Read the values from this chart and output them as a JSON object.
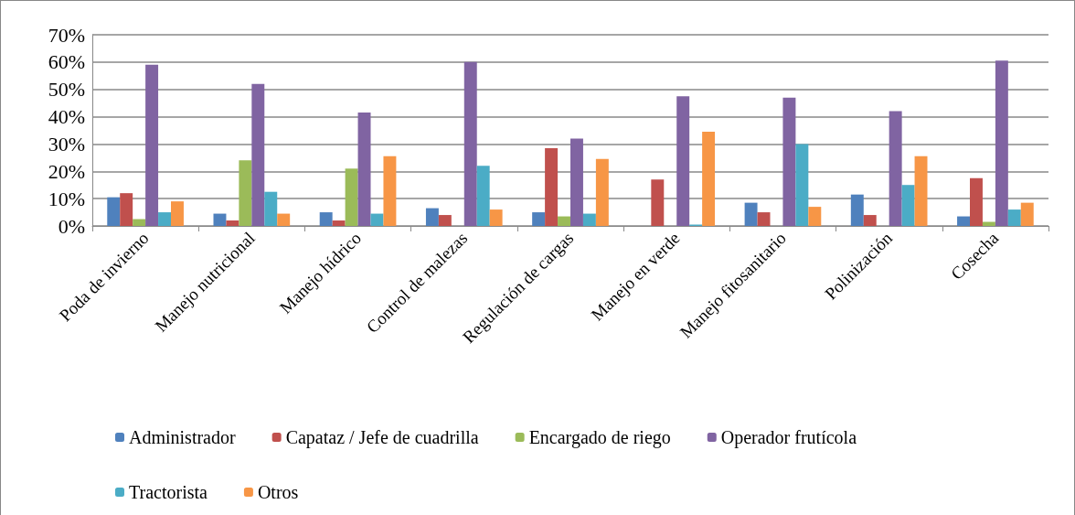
{
  "chart_data": {
    "type": "bar",
    "categories": [
      "Poda de invierno",
      "Manejo nutricional",
      "Manejo hídrico",
      "Control de malezas",
      "Regulación de cargas",
      "Manejo en verde",
      "Manejo fitosanitario",
      "Polinización",
      "Cosecha"
    ],
    "series": [
      {
        "name": "Administrador",
        "color": "#4f81bd",
        "values": [
          10.5,
          4.5,
          5,
          6.5,
          5,
          0,
          8.5,
          11.5,
          3.5
        ]
      },
      {
        "name": "Capataz / Jefe de cuadrilla",
        "color": "#c0504d",
        "values": [
          12,
          2,
          2,
          4,
          28.5,
          17,
          5,
          4,
          17.5
        ]
      },
      {
        "name": "Encargado de riego",
        "color": "#9bbb59",
        "values": [
          2.5,
          24,
          21,
          0,
          3.5,
          0,
          null,
          0,
          1.5
        ]
      },
      {
        "name": "Operador frutícola",
        "color": "#8064a2",
        "values": [
          59,
          52,
          41.5,
          60,
          32,
          47.5,
          47,
          42,
          60.5
        ]
      },
      {
        "name": "Tractorista",
        "color": "#4bacc6",
        "values": [
          5,
          12.5,
          4.5,
          22,
          4.5,
          0.5,
          30,
          15,
          6
        ]
      },
      {
        "name": "Otros",
        "color": "#f79646",
        "values": [
          9,
          4.5,
          25.5,
          6,
          24.5,
          34.5,
          7,
          25.5,
          8.5
        ]
      }
    ],
    "ylim": [
      0,
      70
    ],
    "yticks": [
      {
        "value": 0,
        "label": "0%"
      },
      {
        "value": 10,
        "label": "10%"
      },
      {
        "value": 20,
        "label": "20%"
      },
      {
        "value": 30,
        "label": "30%"
      },
      {
        "value": 40,
        "label": "40%"
      },
      {
        "value": 50,
        "label": "50%"
      },
      {
        "value": 60,
        "label": "60%"
      },
      {
        "value": 70,
        "label": "70%"
      }
    ],
    "grid": "y",
    "legend": "bottom"
  }
}
